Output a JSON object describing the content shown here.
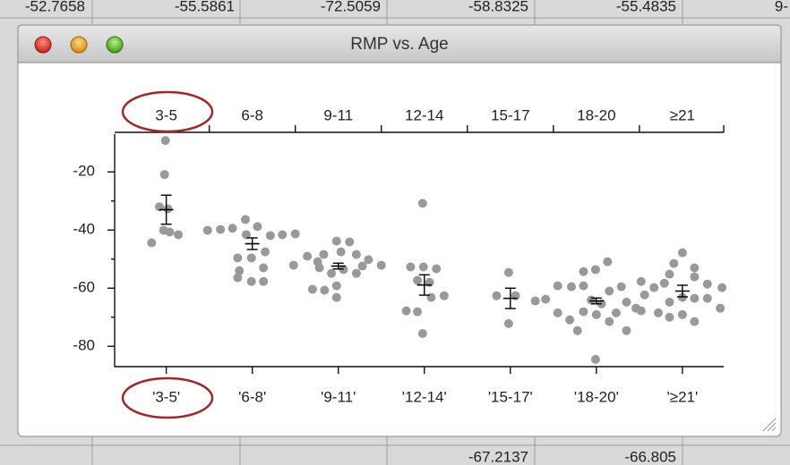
{
  "window": {
    "title": "RMP vs. Age"
  },
  "spreadsheet": {
    "top_row": [
      "-52.7658",
      "-55.5861",
      "-72.5059",
      "-58.8325",
      "-55.4835",
      "9-"
    ],
    "bottom_row": [
      "-67.2137",
      "-66.805"
    ]
  },
  "chart_data": {
    "type": "scatter",
    "categories": [
      "3-5",
      "6-8",
      "9-11",
      "12-14",
      "15-17",
      "18-20",
      "≥21"
    ],
    "x_labels": [
      "'3-5'",
      "'6-8'",
      "'9-11'",
      "'12-14'",
      "'15-17'",
      "'18-20'",
      "'≥21'"
    ],
    "xlim": [
      -0.6,
      6.48
    ],
    "ylim": [
      -87,
      -7
    ],
    "yticks": [
      -20,
      -40,
      -60,
      -80
    ],
    "yticks_minor": [
      -30,
      -50,
      -70
    ],
    "color": "#999999",
    "points": {
      "x": [
        -0.01,
        -0.02,
        -0.08,
        0.02,
        -0.17,
        -0.03,
        0.04,
        0.14,
        0.48,
        0.63,
        0.77,
        0.92,
        1.06,
        0.93,
        1.21,
        1.35,
        1.5,
        0.83,
        0.99,
        1.15,
        0.85,
        1.13,
        0.83,
        0.99,
        1.13,
        1.48,
        1.64,
        1.76,
        1.83,
        1.98,
        2.13,
        2.03,
        2.21,
        2.35,
        2.5,
        1.78,
        1.92,
        2.06,
        2.21,
        1.7,
        1.84,
        1.98,
        1.98,
        2.28,
        2.98,
        2.84,
        2.99,
        3.14,
        2.92,
        3.06,
        3.23,
        2.79,
        2.92,
        2.98,
        3.08,
        3.98,
        3.84,
        4.06,
        3.98,
        4.29,
        4.41,
        4.55,
        4.71,
        4.85,
        4.99,
        5.13,
        4.85,
        5.15,
        5.29,
        5.35,
        5.46,
        4.55,
        4.69,
        4.85,
        5.0,
        5.15,
        4.78,
        4.99,
        4.94,
        5.06,
        5.35,
        5.23,
        5.52,
        5.52,
        5.67,
        5.79,
        6.0,
        5.85,
        6.14,
        6.14,
        6.29,
        6.46,
        5.85,
        6.0,
        6.14,
        6.29,
        6.44,
        5.72,
        5.85,
        6.0,
        6.14,
        5.56,
        5.9
      ],
      "y": [
        -9.2,
        -20.9,
        -32.0,
        -32.7,
        -44.4,
        -40.1,
        -40.7,
        -41.6,
        -40.1,
        -39.8,
        -39.4,
        -36.4,
        -38.8,
        -41.6,
        -41.9,
        -41.6,
        -41.3,
        -49.6,
        -49.6,
        -47.5,
        -54.0,
        -53.0,
        -56.4,
        -57.7,
        -57.7,
        -52.1,
        -49.0,
        -50.9,
        -48.4,
        -43.8,
        -44.1,
        -47.5,
        -48.4,
        -50.2,
        -52.1,
        -53.0,
        -54.9,
        -53.6,
        -54.9,
        -60.4,
        -60.7,
        -63.2,
        -59.2,
        -52.4,
        -30.8,
        -52.7,
        -52.7,
        -53.3,
        -57.3,
        -58.0,
        -62.6,
        -67.8,
        -68.1,
        -75.6,
        -63.2,
        -54.6,
        -62.6,
        -62.6,
        -72.2,
        -64.4,
        -63.8,
        -59.2,
        -59.5,
        -59.2,
        -53.6,
        -50.9,
        -54.3,
        -61.0,
        -59.5,
        -64.8,
        -66.9,
        -68.5,
        -70.9,
        -68.1,
        -69.1,
        -71.5,
        -74.6,
        -84.5,
        -64.1,
        -65.4,
        -74.6,
        -68.5,
        -67.8,
        -57.7,
        -59.8,
        -58.3,
        -47.8,
        -55.2,
        -53.0,
        -56.1,
        -58.6,
        -59.8,
        -64.8,
        -63.2,
        -63.5,
        -63.5,
        -66.9,
        -68.5,
        -70.0,
        -69.1,
        -71.5,
        -62.3,
        -51.5
      ]
    },
    "means": [
      -33,
      -44.7,
      -52.4,
      -58.9,
      -63.5,
      -64.4,
      -61
    ],
    "errors": [
      5,
      2,
      1,
      3.5,
      3.5,
      1,
      2
    ]
  }
}
